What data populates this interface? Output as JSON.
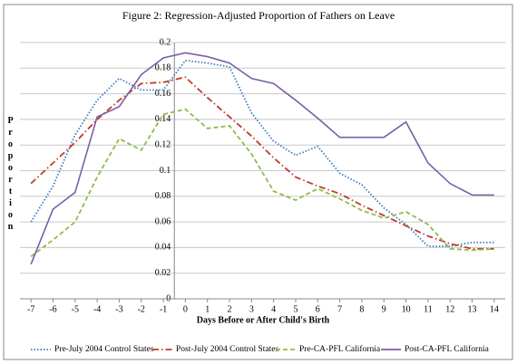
{
  "chart_data": {
    "type": "line",
    "title": "Figure 2: Regression-Adjusted Proportion of Fathers on Leave",
    "x_label": "Days Before or After Child's Birth",
    "y_label": "Proportion",
    "x": [
      -7,
      -6,
      -5,
      -4,
      -3,
      -2,
      -1,
      0,
      1,
      2,
      3,
      4,
      5,
      6,
      7,
      8,
      9,
      10,
      11,
      12,
      13,
      14
    ],
    "xlim": [
      -7.5,
      14.5
    ],
    "xticks": [
      -7,
      -6,
      -5,
      -4,
      -3,
      -2,
      -1,
      0,
      1,
      2,
      3,
      4,
      5,
      6,
      7,
      8,
      9,
      10,
      11,
      12,
      13,
      14
    ],
    "ylim": [
      0,
      0.2
    ],
    "yticks": [
      0,
      0.02,
      0.04,
      0.06,
      0.08,
      0.1,
      0.12,
      0.14,
      0.16,
      0.18,
      0.2
    ],
    "grid": true,
    "legend": "bottom",
    "series": [
      {
        "name": "Pre-July 2004 Control States",
        "color": "#3a7bbf",
        "style": "dotted",
        "values": [
          0.06,
          0.088,
          0.128,
          0.155,
          0.172,
          0.163,
          0.163,
          0.186,
          0.184,
          0.181,
          0.145,
          0.123,
          0.112,
          0.119,
          0.098,
          0.089,
          0.071,
          0.058,
          0.041,
          0.041,
          0.044,
          0.044
        ]
      },
      {
        "name": "Post-July 2004 Control States",
        "color": "#c0392b",
        "style": "dashdot",
        "values": [
          0.09,
          0.106,
          0.122,
          0.14,
          0.155,
          0.168,
          0.169,
          0.173,
          0.157,
          0.142,
          0.127,
          0.11,
          0.095,
          0.088,
          0.082,
          0.073,
          0.065,
          0.057,
          0.049,
          0.043,
          0.039,
          0.039
        ]
      },
      {
        "name": "Pre-CA-PFL California",
        "color": "#8ebc4a",
        "style": "dashed",
        "values": [
          0.033,
          0.046,
          0.06,
          0.095,
          0.125,
          0.116,
          0.144,
          0.148,
          0.133,
          0.135,
          0.113,
          0.084,
          0.077,
          0.086,
          0.078,
          0.069,
          0.063,
          0.068,
          0.058,
          0.039,
          0.038,
          0.039
        ]
      },
      {
        "name": "Post-CA-PFL California",
        "color": "#7b5ea7",
        "style": "solid",
        "values": [
          0.027,
          0.07,
          0.083,
          0.142,
          0.15,
          0.175,
          0.188,
          0.192,
          0.189,
          0.184,
          0.172,
          0.168,
          0.155,
          0.141,
          0.126,
          0.126,
          0.126,
          0.138,
          0.106,
          0.09,
          0.081,
          0.081
        ]
      }
    ]
  }
}
